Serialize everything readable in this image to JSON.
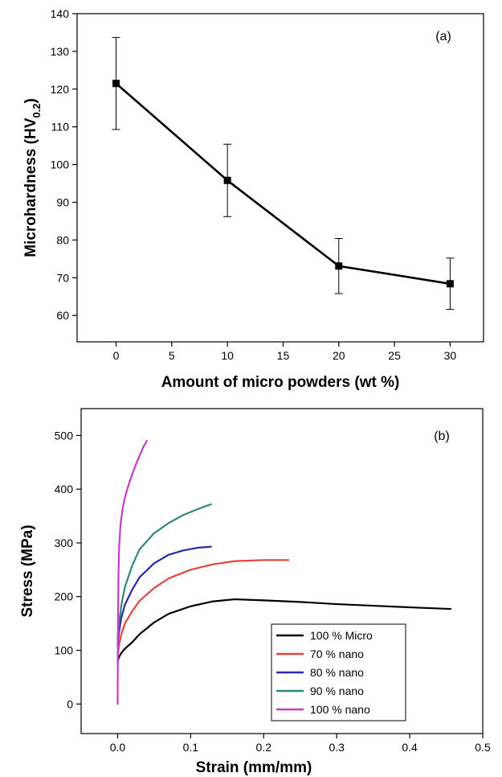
{
  "chart_data": [
    {
      "type": "line",
      "panel_label": "(a)",
      "xlabel": "Amount of micro powders (wt %)",
      "ylabel": "Microhardness (HV",
      "ylabel_subscript": "0.2",
      "ylabel_close": ")",
      "xlim": [
        -3.5,
        33
      ],
      "ylim": [
        53,
        140
      ],
      "xticks": [
        0,
        5,
        10,
        15,
        20,
        25,
        30
      ],
      "yticks": [
        60,
        70,
        80,
        90,
        100,
        110,
        120,
        130,
        140
      ],
      "grid": false,
      "series": [
        {
          "x": [
            0,
            10,
            20,
            30
          ],
          "y": [
            121.5,
            95.8,
            73.1,
            68.4
          ],
          "error": [
            12.2,
            9.6,
            7.3,
            6.8
          ],
          "color": "#000000",
          "marker": "square"
        }
      ]
    },
    {
      "type": "line",
      "panel_label": "(b)",
      "xlabel": "Strain (mm/mm)",
      "ylabel": "Stress (MPa)",
      "xlim": [
        -0.05,
        0.5
      ],
      "ylim": [
        -55,
        550
      ],
      "xticks": [
        0.0,
        0.1,
        0.2,
        0.3,
        0.4,
        0.5
      ],
      "xtick_labels": [
        "0.0",
        "0.1",
        "0.2",
        "0.3",
        "0.4",
        "0.5"
      ],
      "yticks": [
        0,
        100,
        200,
        300,
        400,
        500
      ],
      "grid": false,
      "legend_position": "lower-right",
      "series": [
        {
          "name": "100 % Micro",
          "color": "#000000",
          "x": [
            0,
            0.002,
            0.005,
            0.01,
            0.02,
            0.03,
            0.05,
            0.07,
            0.1,
            0.13,
            0.16,
            0.2,
            0.25,
            0.3,
            0.35,
            0.4,
            0.456
          ],
          "y": [
            80,
            88,
            95,
            103,
            115,
            130,
            152,
            168,
            182,
            191,
            195,
            193,
            190,
            186,
            183,
            180,
            177
          ]
        },
        {
          "name": "70 % nano",
          "color": "#e0463c",
          "x": [
            0,
            0.002,
            0.005,
            0.01,
            0.02,
            0.03,
            0.05,
            0.07,
            0.1,
            0.13,
            0.16,
            0.2,
            0.234
          ],
          "y": [
            90,
            110,
            130,
            150,
            173,
            192,
            216,
            234,
            250,
            260,
            266,
            268,
            268
          ]
        },
        {
          "name": "80 % nano",
          "color": "#2a2aa6",
          "x": [
            0,
            0.002,
            0.005,
            0.01,
            0.02,
            0.03,
            0.05,
            0.07,
            0.09,
            0.11,
            0.128
          ],
          "y": [
            110,
            135,
            160,
            185,
            213,
            236,
            262,
            278,
            286,
            291,
            293
          ]
        },
        {
          "name": "90 % nano",
          "color": "#2e8a78",
          "x": [
            0,
            0.002,
            0.005,
            0.01,
            0.02,
            0.03,
            0.05,
            0.07,
            0.09,
            0.11,
            0.128
          ],
          "y": [
            120,
            150,
            183,
            218,
            258,
            288,
            318,
            337,
            352,
            363,
            372
          ]
        },
        {
          "name": "100 % nano",
          "color": "#c23ec9",
          "x": [
            0,
            0.0005,
            0.001,
            0.002,
            0.004,
            0.007,
            0.01,
            0.015,
            0.02,
            0.025,
            0.03,
            0.035,
            0.04
          ],
          "y": [
            0,
            150,
            230,
            290,
            335,
            365,
            385,
            408,
            428,
            446,
            462,
            478,
            490
          ]
        }
      ]
    }
  ]
}
